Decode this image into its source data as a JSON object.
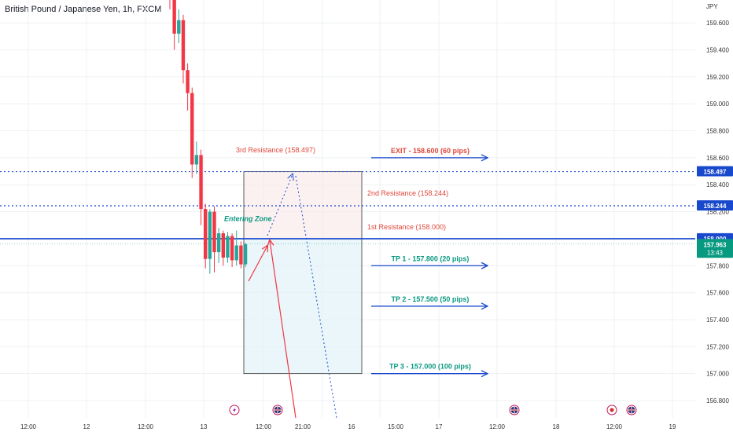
{
  "header": {
    "title": "British Pound / Japanese Yen, 1h, FXCM"
  },
  "axis": {
    "currency": "JPY"
  },
  "colors": {
    "up": "#26a69a",
    "down": "#f23645",
    "level": "#1848cc",
    "resistance_text": "#e0473a",
    "tp_text": "#089981",
    "zone_text": "#089981",
    "price_tag": "#089981",
    "level_tag": "#1848cc",
    "grid": "#eef0f3"
  },
  "chart_data": {
    "type": "candlestick",
    "title": "British Pound / Japanese Yen, 1h, FXCM",
    "ylim": [
      156.72,
      159.8
    ],
    "y_ticks": [
      "159.600",
      "159.400",
      "159.200",
      "159.000",
      "158.800",
      "158.600",
      "158.400",
      "158.200",
      "157.800",
      "157.600",
      "157.400",
      "157.200",
      "157.000",
      "156.800"
    ],
    "x_ticks": [
      "12:00",
      "12",
      "12:00",
      "13",
      "12:00",
      "21:00",
      "16",
      "15:00",
      "17",
      "12:00",
      "18",
      "12:00",
      "19"
    ],
    "candles": [
      {
        "o": 159.92,
        "h": 160.05,
        "l": 159.7,
        "c": 159.78
      },
      {
        "o": 159.78,
        "h": 159.82,
        "l": 159.4,
        "c": 159.52
      },
      {
        "o": 159.52,
        "h": 159.7,
        "l": 159.45,
        "c": 159.62
      },
      {
        "o": 159.62,
        "h": 159.66,
        "l": 159.15,
        "c": 159.25
      },
      {
        "o": 159.25,
        "h": 159.3,
        "l": 158.95,
        "c": 159.08
      },
      {
        "o": 159.08,
        "h": 159.12,
        "l": 158.45,
        "c": 158.55
      },
      {
        "o": 158.55,
        "h": 158.72,
        "l": 158.48,
        "c": 158.62
      },
      {
        "o": 158.62,
        "h": 158.66,
        "l": 158.1,
        "c": 158.22
      },
      {
        "o": 158.22,
        "h": 158.26,
        "l": 157.78,
        "c": 157.85
      },
      {
        "o": 157.85,
        "h": 158.22,
        "l": 157.74,
        "c": 158.2
      },
      {
        "o": 158.2,
        "h": 158.24,
        "l": 157.75,
        "c": 157.9
      },
      {
        "o": 157.9,
        "h": 158.08,
        "l": 157.82,
        "c": 158.04
      },
      {
        "o": 158.04,
        "h": 158.06,
        "l": 157.8,
        "c": 157.86
      },
      {
        "o": 157.86,
        "h": 158.05,
        "l": 157.82,
        "c": 158.02
      },
      {
        "o": 158.02,
        "h": 158.04,
        "l": 157.79,
        "c": 157.84
      },
      {
        "o": 157.84,
        "h": 158.06,
        "l": 157.8,
        "c": 157.95
      },
      {
        "o": 157.95,
        "h": 157.98,
        "l": 157.78,
        "c": 157.81
      },
      {
        "o": 157.81,
        "h": 157.97,
        "l": 157.79,
        "c": 157.96
      }
    ],
    "levels": [
      {
        "price": 158.497,
        "style": "dotted",
        "tag": "158.497"
      },
      {
        "price": 158.244,
        "style": "dotted",
        "tag": "158.244"
      },
      {
        "price": 158.0,
        "style": "solid",
        "tag": "158.000"
      }
    ],
    "current_price": {
      "value": 157.963,
      "label": "157.963",
      "countdown": "13:43"
    },
    "zones": {
      "resistance": {
        "top": 158.497,
        "bottom": 158.0
      },
      "entry": {
        "top": 158.0,
        "bottom": 157.0
      }
    },
    "annotations": {
      "third_resistance": "3rd Resistance (158.497)",
      "second_resistance": "2nd Resistance (158.244)",
      "first_resistance": "1st Resistance (158.000)",
      "entering_zone": "Entering Zone",
      "targets": [
        {
          "label": "EXIT - 158.600 (60 pips)",
          "price": 158.6,
          "kind": "exit"
        },
        {
          "label": "TP 1 - 157.800 (20 pips)",
          "price": 157.8,
          "kind": "tp"
        },
        {
          "label": "TP 2 - 157.500 (50 pips)",
          "price": 157.5,
          "kind": "tp"
        },
        {
          "label": "TP 3 - 157.000 (100 pips)",
          "price": 157.0,
          "kind": "tp"
        }
      ]
    },
    "events": [
      {
        "icon": "lightning-icon",
        "x_slot": 0
      },
      {
        "icon": "uk-flag-icon",
        "x_slot": 1
      },
      {
        "icon": "uk-flag-icon",
        "x_slot": 2
      },
      {
        "icon": "record-icon",
        "x_slot": 3
      },
      {
        "icon": "uk-flag-icon",
        "x_slot": 4
      }
    ]
  }
}
